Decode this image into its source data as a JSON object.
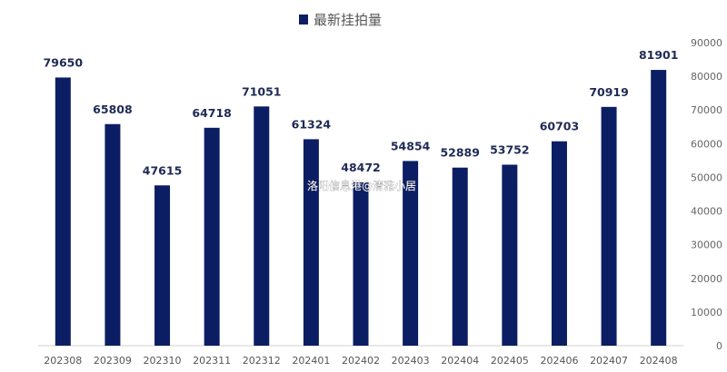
{
  "watermark": "洛阳信息港@清雅小居",
  "chart_data": {
    "type": "bar",
    "categories": [
      "202308",
      "202309",
      "202310",
      "202311",
      "202312",
      "202401",
      "202402",
      "202403",
      "202404",
      "202405",
      "202406",
      "202407",
      "202408"
    ],
    "series": [
      {
        "name": "最新挂拍量",
        "values": [
          79650,
          65808,
          47615,
          64718,
          71051,
          61324,
          48472,
          54854,
          52889,
          53752,
          60703,
          70919,
          81901
        ]
      }
    ],
    "ylim": [
      0,
      90000
    ],
    "yticks": [
      0,
      10000,
      20000,
      30000,
      40000,
      50000,
      60000,
      70000,
      80000,
      90000
    ],
    "y_axis_side": "right",
    "legend_position": "top-center",
    "grid": false,
    "data_labels": true,
    "bar_color": "#0c1e63"
  }
}
